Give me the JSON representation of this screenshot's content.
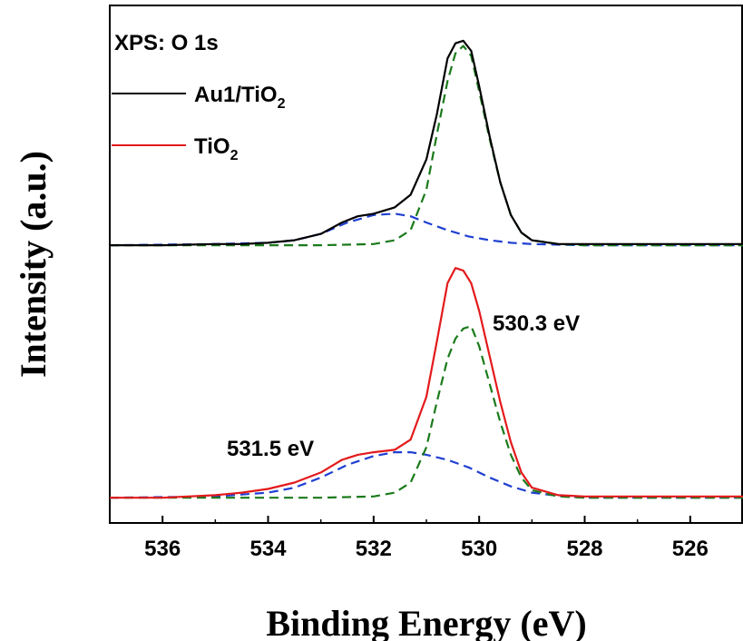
{
  "chart_data": {
    "type": "line",
    "title": "XPS: O 1s",
    "xlabel": "Binding Energy (eV)",
    "ylabel": "Intensity (a.u.)",
    "xlim": [
      537,
      525
    ],
    "x_reversed": true,
    "y_ticks_shown": false,
    "x_ticks": [
      536,
      534,
      532,
      530,
      528,
      526
    ],
    "grid": false,
    "legend_position": "top-left",
    "legend": [
      {
        "label_main": "Au1/TiO",
        "label_sub": "2",
        "color": "#000000"
      },
      {
        "label_main": "TiO",
        "label_sub": "2",
        "color": "#e31a1c"
      }
    ],
    "annotations": [
      {
        "text": "530.3 eV",
        "x": 529.2,
        "y": 0.93
      },
      {
        "text": "531.5 eV",
        "x": 532.7,
        "y": 0.335
      }
    ],
    "units_note": "y values are relative intensity (a.u.) with each spectrum on its own baseline offset; upper panel baseline ~1.0, lower panel baseline ~0.0",
    "series": [
      {
        "name": "Au1/TiO2",
        "color": "#000000",
        "style": "solid",
        "x": [
          537.0,
          536.0,
          535.0,
          534.5,
          534.0,
          533.5,
          533.0,
          532.6,
          532.3,
          532.0,
          531.6,
          531.3,
          531.0,
          530.8,
          530.6,
          530.45,
          530.3,
          530.15,
          530.0,
          529.8,
          529.6,
          529.4,
          529.2,
          529.0,
          528.5,
          528.0,
          527.0,
          526.0,
          525.0
        ],
        "y": [
          1.0,
          1.0,
          1.005,
          1.005,
          1.01,
          1.02,
          1.045,
          1.09,
          1.115,
          1.125,
          1.15,
          1.2,
          1.34,
          1.52,
          1.74,
          1.8,
          1.81,
          1.77,
          1.63,
          1.43,
          1.25,
          1.12,
          1.05,
          1.02,
          1.005,
          1.005,
          1.005,
          1.005,
          1.005
        ]
      },
      {
        "name": "TiO2",
        "color": "#e31a1c",
        "style": "solid",
        "x": [
          537.0,
          536.0,
          535.0,
          534.5,
          534.0,
          533.5,
          533.0,
          532.6,
          532.3,
          532.0,
          531.6,
          531.3,
          531.0,
          530.8,
          530.6,
          530.45,
          530.3,
          530.15,
          530.0,
          529.8,
          529.6,
          529.4,
          529.2,
          529.0,
          528.5,
          528.0,
          527.0,
          526.0,
          525.0
        ],
        "y": [
          0.0,
          0.0,
          0.01,
          0.02,
          0.035,
          0.06,
          0.1,
          0.15,
          0.17,
          0.18,
          0.19,
          0.23,
          0.4,
          0.62,
          0.85,
          0.91,
          0.9,
          0.85,
          0.74,
          0.56,
          0.38,
          0.22,
          0.1,
          0.04,
          0.01,
          0.005,
          0.005,
          0.005,
          0.005
        ]
      },
      {
        "name": "fit 530.3 eV (Au1/TiO2)",
        "color": "#1b7a1b",
        "style": "dashed",
        "x": [
          537.0,
          533.0,
          532.0,
          531.6,
          531.3,
          531.0,
          530.8,
          530.6,
          530.45,
          530.3,
          530.15,
          530.0,
          529.8,
          529.6,
          529.4,
          529.2,
          529.0,
          528.5,
          528.0,
          525.0
        ],
        "y": [
          1.0,
          1.0,
          1.005,
          1.02,
          1.06,
          1.22,
          1.44,
          1.65,
          1.76,
          1.79,
          1.75,
          1.61,
          1.42,
          1.25,
          1.12,
          1.05,
          1.02,
          1.005,
          1.0,
          1.0
        ]
      },
      {
        "name": "fit 531.5 eV (Au1/TiO2)",
        "color": "#1f3fd1",
        "style": "dashed",
        "x": [
          537.0,
          535.0,
          534.0,
          533.5,
          533.0,
          532.5,
          532.0,
          531.6,
          531.3,
          531.0,
          530.6,
          530.2,
          529.8,
          529.4,
          529.0,
          528.0,
          525.0
        ],
        "y": [
          1.0,
          1.005,
          1.01,
          1.02,
          1.045,
          1.09,
          1.12,
          1.125,
          1.115,
          1.09,
          1.06,
          1.035,
          1.02,
          1.01,
          1.005,
          1.0,
          1.0
        ]
      },
      {
        "name": "fit 530.3 eV (TiO2)",
        "color": "#1b7a1b",
        "style": "dashed",
        "x": [
          537.0,
          533.0,
          532.0,
          531.6,
          531.3,
          531.0,
          530.8,
          530.6,
          530.45,
          530.3,
          530.15,
          530.0,
          529.8,
          529.6,
          529.4,
          529.2,
          529.0,
          528.5,
          528.0,
          525.0
        ],
        "y": [
          0.0,
          0.0,
          0.005,
          0.02,
          0.06,
          0.2,
          0.38,
          0.55,
          0.63,
          0.67,
          0.68,
          0.6,
          0.45,
          0.3,
          0.17,
          0.08,
          0.03,
          0.005,
          0.0,
          0.0
        ]
      },
      {
        "name": "fit 531.5 eV (TiO2)",
        "color": "#1f3fd1",
        "style": "dashed",
        "x": [
          537.0,
          535.0,
          534.0,
          533.5,
          533.0,
          532.5,
          532.0,
          531.6,
          531.3,
          531.0,
          530.6,
          530.2,
          529.8,
          529.4,
          529.0,
          528.6,
          528.0,
          525.0
        ],
        "y": [
          0.0,
          0.005,
          0.02,
          0.04,
          0.08,
          0.13,
          0.165,
          0.18,
          0.18,
          0.17,
          0.15,
          0.12,
          0.08,
          0.045,
          0.02,
          0.01,
          0.0,
          0.0
        ]
      }
    ]
  }
}
